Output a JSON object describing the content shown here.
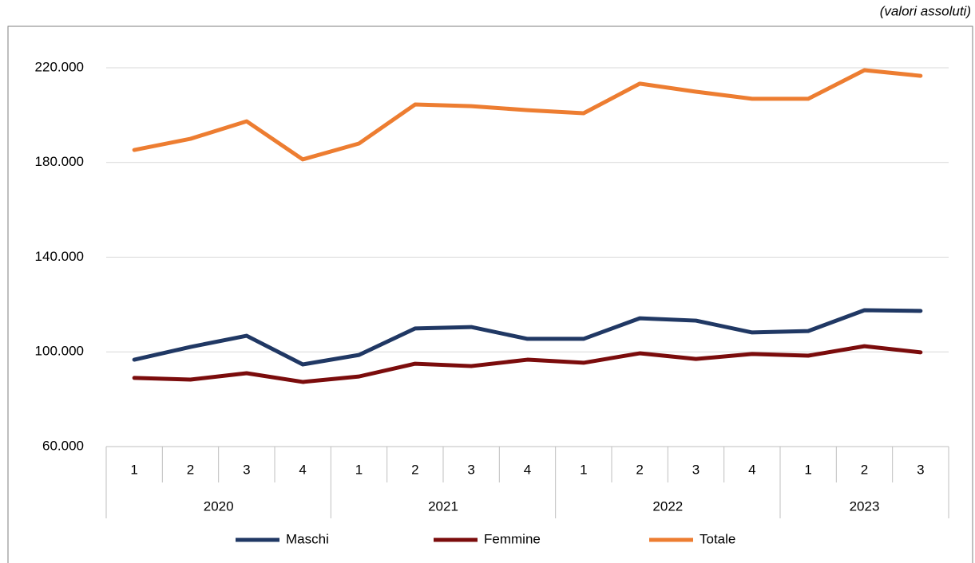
{
  "chart_data": {
    "type": "line",
    "annotation": "(valori assoluti)",
    "groups": [
      {
        "name": "2020",
        "categories": [
          "1",
          "2",
          "3",
          "4"
        ]
      },
      {
        "name": "2021",
        "categories": [
          "1",
          "2",
          "3",
          "4"
        ]
      },
      {
        "name": "2022",
        "categories": [
          "1",
          "2",
          "3",
          "4"
        ]
      },
      {
        "name": "2023",
        "categories": [
          "1",
          "2",
          "3"
        ]
      }
    ],
    "series": [
      {
        "name": "Maschi",
        "color": "#203864",
        "values": [
          96700,
          102100,
          106800,
          94700,
          98700,
          109900,
          110500,
          105500,
          105500,
          114200,
          113200,
          108200,
          108800,
          117600,
          117300
        ]
      },
      {
        "name": "Femmine",
        "color": "#7b0c0c",
        "values": [
          89000,
          88300,
          91000,
          87300,
          89600,
          95000,
          94000,
          96700,
          95400,
          99400,
          97000,
          99100,
          98400,
          102400,
          99800
        ]
      },
      {
        "name": "Totale",
        "color": "#ed7d31",
        "values": [
          185300,
          190000,
          197400,
          181300,
          188000,
          204500,
          203800,
          202100,
          200800,
          213300,
          209900,
          206900,
          206900,
          219000,
          216600
        ]
      }
    ],
    "ylim": [
      60000,
      220000
    ],
    "yticks": [
      {
        "value": 60000,
        "label": "60.000"
      },
      {
        "value": 100000,
        "label": "100.000"
      },
      {
        "value": 140000,
        "label": "140.000"
      },
      {
        "value": 180000,
        "label": "180.000"
      },
      {
        "value": 220000,
        "label": "220.000"
      }
    ],
    "grid": true,
    "legend": "bottom"
  }
}
